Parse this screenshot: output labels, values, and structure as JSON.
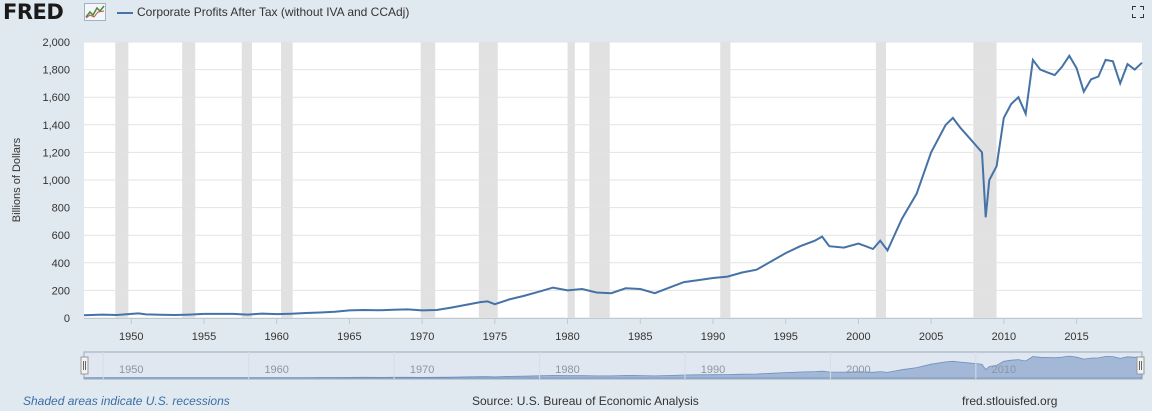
{
  "header": {
    "logo_text": "FRED",
    "legend_label": "Corporate Profits After Tax (without IVA and CCAdj)",
    "fullscreen_icon": "expand-icon"
  },
  "footer": {
    "recession_note": "Shaded areas indicate U.S. recessions",
    "source": "Source: U.S. Bureau of Economic Analysis",
    "site": "fred.stlouisfed.org"
  },
  "colors": {
    "line": "#4572a7",
    "recession": "#e1e1e1",
    "grid": "#e3e3e3",
    "background": "#e1e9f0",
    "navigator_fill": "#a3b8d6"
  },
  "chart_data": {
    "type": "line",
    "title": "",
    "xlabel": "",
    "ylabel": "Billions of Dollars",
    "xlim": [
      1946.75,
      2019.5
    ],
    "ylim": [
      0,
      2000
    ],
    "grid": true,
    "legend": "top-left",
    "x_ticks": [
      1950,
      1955,
      1960,
      1965,
      1970,
      1975,
      1980,
      1985,
      1990,
      1995,
      2000,
      2005,
      2010,
      2015
    ],
    "y_ticks": [
      0,
      200,
      400,
      600,
      800,
      1000,
      1200,
      1400,
      1600,
      1800,
      2000
    ],
    "navigator_ticks": [
      1950,
      1960,
      1970,
      1980,
      1990,
      2000,
      2010
    ],
    "recessions": [
      [
        1948.9,
        1949.8
      ],
      [
        1953.5,
        1954.4
      ],
      [
        1957.6,
        1958.3
      ],
      [
        1960.3,
        1961.1
      ],
      [
        1969.9,
        1970.9
      ],
      [
        1973.9,
        1975.2
      ],
      [
        1980.0,
        1980.5
      ],
      [
        1981.5,
        1982.9
      ],
      [
        1990.5,
        1991.2
      ],
      [
        2001.2,
        2001.9
      ],
      [
        2007.9,
        2009.5
      ]
    ],
    "series": [
      {
        "name": "Corporate Profits After Tax (without IVA and CCAdj)",
        "x": [
          1946.75,
          1948,
          1949,
          1950,
          1950.5,
          1951,
          1952,
          1953,
          1954,
          1955,
          1956,
          1957,
          1958,
          1959,
          1960,
          1961,
          1962,
          1963,
          1964,
          1965,
          1966,
          1967,
          1968,
          1969,
          1970,
          1971,
          1972,
          1973,
          1974,
          1974.5,
          1975,
          1976,
          1977,
          1978,
          1979,
          1980,
          1981,
          1982,
          1983,
          1984,
          1985,
          1986,
          1987,
          1988,
          1989,
          1990,
          1991,
          1992,
          1993,
          1994,
          1995,
          1996,
          1997,
          1997.5,
          1998,
          1999,
          2000,
          2000.5,
          2001,
          2001.5,
          2002,
          2003,
          2004,
          2005,
          2006,
          2006.5,
          2007,
          2007.5,
          2008,
          2008.5,
          2008.75,
          2009,
          2009.5,
          2010,
          2010.5,
          2011,
          2011.5,
          2012,
          2012.5,
          2013,
          2013.5,
          2014,
          2014.5,
          2015,
          2015.5,
          2016,
          2016.5,
          2017,
          2017.5,
          2018,
          2018.5,
          2019,
          2019.5
        ],
        "y": [
          20,
          25,
          22,
          30,
          33,
          26,
          23,
          22,
          25,
          30,
          30,
          30,
          25,
          32,
          28,
          31,
          36,
          40,
          45,
          55,
          58,
          56,
          60,
          62,
          55,
          58,
          75,
          95,
          115,
          120,
          100,
          135,
          160,
          190,
          220,
          200,
          210,
          185,
          180,
          215,
          210,
          180,
          220,
          260,
          275,
          290,
          300,
          330,
          350,
          410,
          470,
          520,
          560,
          590,
          520,
          510,
          540,
          520,
          500,
          560,
          490,
          720,
          900,
          1200,
          1400,
          1450,
          1380,
          1320,
          1260,
          1200,
          730,
          1000,
          1100,
          1450,
          1550,
          1600,
          1480,
          1870,
          1800,
          1780,
          1760,
          1820,
          1900,
          1810,
          1640,
          1730,
          1750,
          1870,
          1860,
          1700,
          1840,
          1800,
          1850
        ]
      }
    ]
  }
}
